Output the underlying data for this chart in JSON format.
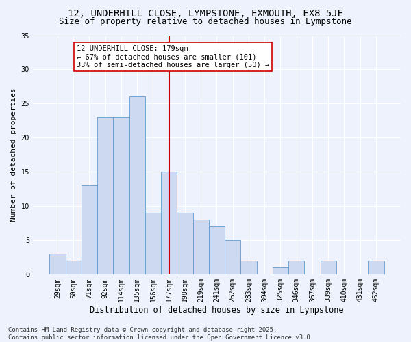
{
  "title": "12, UNDERHILL CLOSE, LYMPSTONE, EXMOUTH, EX8 5JE",
  "subtitle": "Size of property relative to detached houses in Lympstone",
  "xlabel": "Distribution of detached houses by size in Lympstone",
  "ylabel": "Number of detached properties",
  "bar_labels": [
    "29sqm",
    "50sqm",
    "71sqm",
    "92sqm",
    "114sqm",
    "135sqm",
    "156sqm",
    "177sqm",
    "198sqm",
    "219sqm",
    "241sqm",
    "262sqm",
    "283sqm",
    "304sqm",
    "325sqm",
    "346sqm",
    "367sqm",
    "389sqm",
    "410sqm",
    "431sqm",
    "452sqm"
  ],
  "bar_values": [
    3,
    2,
    13,
    23,
    23,
    26,
    9,
    15,
    9,
    8,
    7,
    5,
    2,
    0,
    1,
    2,
    0,
    2,
    0,
    0,
    2
  ],
  "bar_color": "#ccd9f0",
  "bar_edge_color": "#6699cc",
  "vline_x_index": 7,
  "vline_color": "#cc0000",
  "annotation_text": "12 UNDERHILL CLOSE: 179sqm\n← 67% of detached houses are smaller (101)\n33% of semi-detached houses are larger (50) →",
  "annotation_box_color": "#ffffff",
  "annotation_box_edge_color": "#cc0000",
  "annotation_fontsize": 7.5,
  "ylim": [
    0,
    35
  ],
  "yticks": [
    0,
    5,
    10,
    15,
    20,
    25,
    30,
    35
  ],
  "footer_text": "Contains HM Land Registry data © Crown copyright and database right 2025.\nContains public sector information licensed under the Open Government Licence v3.0.",
  "bg_color": "#edf2fc",
  "plot_bg_color": "#edf2fc",
  "grid_color": "#ffffff",
  "title_fontsize": 10,
  "subtitle_fontsize": 9,
  "xlabel_fontsize": 8.5,
  "ylabel_fontsize": 8,
  "tick_fontsize": 7,
  "footer_fontsize": 6.5
}
